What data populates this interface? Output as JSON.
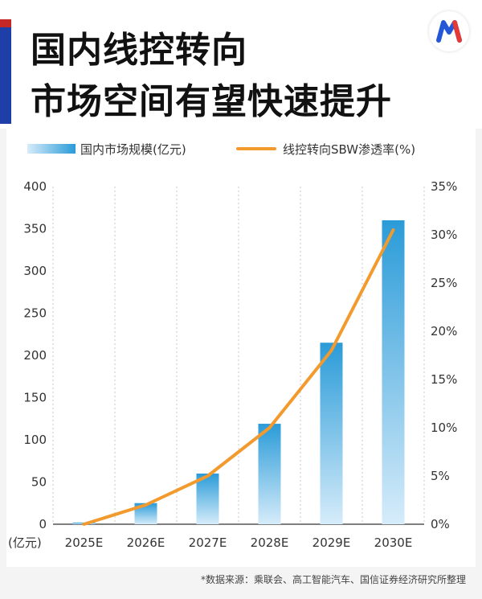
{
  "header": {
    "title_line1": "国内线控转向",
    "title_line2": "市场空间有望快速提升"
  },
  "logo": {
    "name": "brand-logo-m"
  },
  "colors": {
    "bar_top": "#2a9bd8",
    "bar_bottom": "#d6ecfa",
    "line": "#f29a2e",
    "accent_red": "#c62828",
    "accent_blue": "#1e3fa8"
  },
  "chart_data": {
    "type": "bar",
    "categories": [
      "2025E",
      "2026E",
      "2027E",
      "2028E",
      "2029E",
      "2030E"
    ],
    "series": [
      {
        "name": "国内市场规模(亿元)",
        "type": "bar",
        "axis": "left",
        "values": [
          2,
          25,
          60,
          119,
          215,
          360
        ]
      },
      {
        "name": "线控转向SBW渗透率(%)",
        "type": "line",
        "axis": "right",
        "values": [
          0,
          2,
          5,
          10,
          18,
          30.5
        ]
      }
    ],
    "y_left": {
      "ylim": [
        0,
        400
      ],
      "ticks": [
        "0",
        "50",
        "100",
        "150",
        "200",
        "250",
        "300",
        "350",
        "400"
      ],
      "unit_label": "(亿元)"
    },
    "y_right": {
      "ylim": [
        0,
        35
      ],
      "ticks": [
        "0%",
        "5%",
        "10%",
        "15%",
        "20%",
        "25%",
        "30%",
        "35%"
      ]
    },
    "grid": "vertical-dotted",
    "legend": "top"
  },
  "footer": {
    "source": "*数据来源：乘联会、高工智能汽车、国信证券经济研究所整理"
  }
}
